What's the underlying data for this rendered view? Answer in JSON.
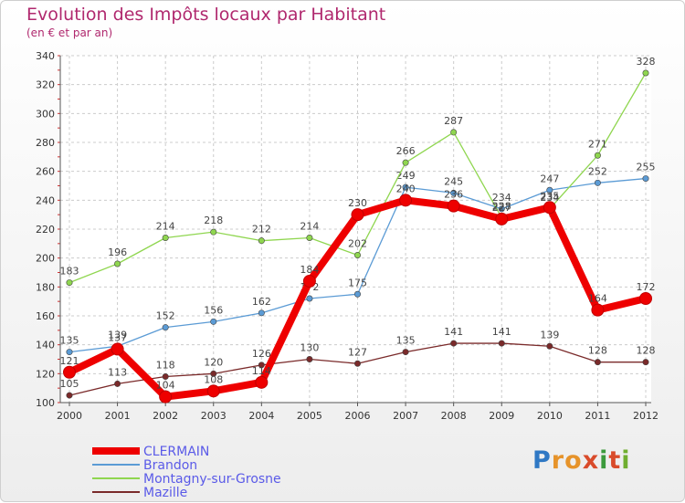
{
  "title": "Evolution des Impôts locaux par Habitant",
  "subtitle": "(en € et par an)",
  "logo": {
    "text": "Proxiti",
    "letters": [
      "P",
      "r",
      "o",
      "x",
      "i",
      "t",
      "i"
    ]
  },
  "chart_data": {
    "type": "line",
    "title": "Evolution des Impôts locaux par Habitant",
    "subtitle": "(en € et par an)",
    "x": [
      2000,
      2001,
      2002,
      2003,
      2004,
      2005,
      2006,
      2007,
      2008,
      2009,
      2010,
      2011,
      2012
    ],
    "ylim": [
      100,
      340
    ],
    "yticks": [
      100,
      120,
      140,
      160,
      180,
      200,
      220,
      240,
      260,
      280,
      300,
      320,
      340
    ],
    "grid": true,
    "legend": "bottom-left",
    "series": [
      {
        "name": "Brandon",
        "color": "#5b9bd5",
        "values": [
          135,
          139,
          152,
          156,
          162,
          172,
          175,
          249,
          245,
          234,
          247,
          252,
          255
        ],
        "labels": [
          "135",
          "139",
          "152",
          "156",
          "162",
          "172",
          "175",
          "249",
          "245",
          "234",
          "247",
          "252",
          "255"
        ]
      },
      {
        "name": "Montagny-sur-Grosne",
        "color": "#8fd64f",
        "values": [
          183,
          196,
          214,
          218,
          212,
          214,
          202,
          266,
          287,
          228,
          234,
          271,
          328
        ],
        "labels": [
          "183",
          "196",
          "214",
          "218",
          "212",
          "214",
          "202",
          "266",
          "287",
          "228",
          "234",
          "271",
          "328"
        ]
      },
      {
        "name": "Mazille",
        "color": "#7a2a2a",
        "values": [
          105,
          113,
          118,
          120,
          126,
          130,
          127,
          135,
          141,
          141,
          139,
          128,
          128
        ],
        "labels": [
          "105",
          "113",
          "118",
          "120",
          "126",
          "130",
          "127",
          "135",
          "141",
          "141",
          "139",
          "128",
          "128"
        ]
      },
      {
        "name": "CLERMAIN",
        "color": "#ee0000",
        "values": [
          121,
          137,
          104,
          108,
          114,
          184,
          230,
          240,
          236,
          227,
          235,
          164,
          172
        ],
        "labels": [
          "121",
          "137",
          "104",
          "108",
          "114",
          "184",
          "230",
          "240",
          "236",
          "227",
          "235",
          "164",
          "172"
        ]
      }
    ],
    "legend_order": [
      "CLERMAIN",
      "Brandon",
      "Montagny-sur-Grosne",
      "Mazille"
    ]
  }
}
